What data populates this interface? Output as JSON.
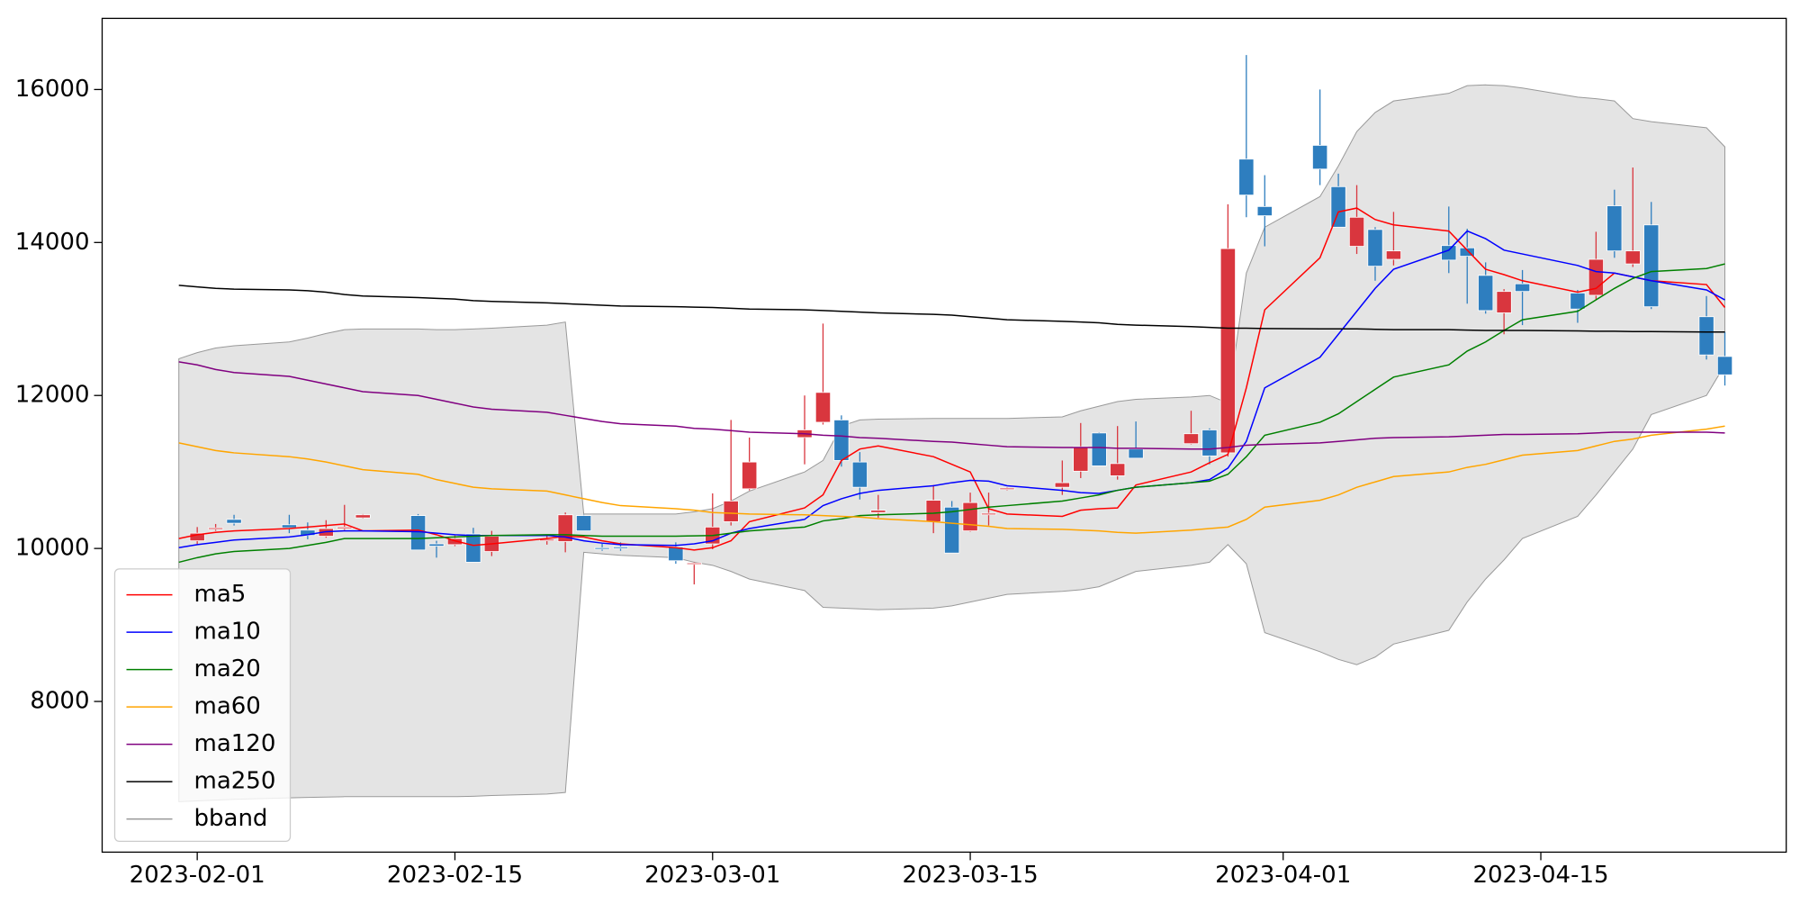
{
  "chart_data": {
    "type": "candlestick",
    "x": [
      "2023-01-31",
      "2023-02-01",
      "2023-02-02",
      "2023-02-03",
      "2023-02-06",
      "2023-02-07",
      "2023-02-08",
      "2023-02-09",
      "2023-02-10",
      "2023-02-13",
      "2023-02-14",
      "2023-02-15",
      "2023-02-16",
      "2023-02-17",
      "2023-02-20",
      "2023-02-21",
      "2023-02-22",
      "2023-02-23",
      "2023-02-24",
      "2023-02-27",
      "2023-02-28",
      "2023-03-01",
      "2023-03-02",
      "2023-03-03",
      "2023-03-06",
      "2023-03-07",
      "2023-03-08",
      "2023-03-09",
      "2023-03-10",
      "2023-03-13",
      "2023-03-14",
      "2023-03-15",
      "2023-03-16",
      "2023-03-17",
      "2023-03-20",
      "2023-03-21",
      "2023-03-22",
      "2023-03-23",
      "2023-03-24",
      "2023-03-27",
      "2023-03-28",
      "2023-03-29",
      "2023-03-30",
      "2023-03-31",
      "2023-04-03",
      "2023-04-04",
      "2023-04-05",
      "2023-04-06",
      "2023-04-07",
      "2023-04-10",
      "2023-04-11",
      "2023-04-12",
      "2023-04-13",
      "2023-04-14",
      "2023-04-17",
      "2023-04-18",
      "2023-04-19",
      "2023-04-20",
      "2023-04-21",
      "2023-04-24",
      "2023-04-25"
    ],
    "open": [
      null,
      10100,
      10250,
      10380,
      10310,
      10240,
      10160,
      10260,
      10400,
      10430,
      10060,
      10050,
      10190,
      9960,
      10100,
      10090,
      10430,
      10010,
      10020,
      10020,
      9800,
      10060,
      10350,
      10780,
      11450,
      11650,
      11680,
      11130,
      10470,
      10350,
      10540,
      10230,
      10440,
      10770,
      10800,
      11010,
      11510,
      10950,
      11300,
      11370,
      11550,
      11250,
      15090,
      14470,
      15270,
      14730,
      13950,
      14170,
      13780,
      13960,
      13930,
      13570,
      13080,
      13460,
      13340,
      13310,
      14480,
      13720,
      14230,
      13030,
      12510
    ],
    "high": [
      null,
      10280,
      10320,
      10440,
      10440,
      10340,
      10370,
      10570,
      10450,
      10450,
      10100,
      10170,
      10270,
      10230,
      10180,
      10470,
      10440,
      10060,
      10080,
      10080,
      9820,
      10720,
      11680,
      11450,
      12000,
      12940,
      11740,
      11260,
      10700,
      10830,
      10620,
      10730,
      10730,
      10800,
      11150,
      11640,
      11520,
      11600,
      11660,
      11800,
      11570,
      14500,
      16450,
      14880,
      16000,
      14900,
      14750,
      14200,
      14400,
      14470,
      14180,
      13740,
      13390,
      13640,
      13380,
      14140,
      14690,
      14980,
      14530,
      13300,
      12830
    ],
    "low": [
      null,
      10050,
      10230,
      10300,
      10200,
      10120,
      10140,
      10240,
      10390,
      9980,
      9880,
      10030,
      9820,
      9900,
      10050,
      9950,
      10230,
      9970,
      9970,
      9800,
      9530,
      9990,
      10300,
      10760,
      11100,
      11620,
      11070,
      10640,
      10400,
      10200,
      9940,
      10220,
      10300,
      10760,
      10700,
      10920,
      11080,
      10900,
      11180,
      11360,
      11100,
      11200,
      14330,
      13950,
      14750,
      14200,
      13850,
      13500,
      13700,
      13600,
      13200,
      13070,
      12800,
      12920,
      12950,
      13250,
      13800,
      13680,
      13130,
      12470,
      12130
    ],
    "close": [
      null,
      10200,
      10270,
      10330,
      10270,
      10170,
      10260,
      10280,
      10440,
      9980,
      10030,
      10130,
      9820,
      10160,
      10120,
      10440,
      10230,
      9990,
      10000,
      9840,
      9810,
      10280,
      10620,
      11130,
      11550,
      12040,
      11150,
      10800,
      10500,
      10630,
      9940,
      10600,
      10460,
      10790,
      10860,
      11330,
      11080,
      11110,
      11180,
      11500,
      11210,
      13920,
      14620,
      14350,
      14960,
      14200,
      14330,
      13690,
      13890,
      13770,
      13820,
      13110,
      13360,
      13360,
      13130,
      13780,
      13890,
      13890,
      13160,
      12530,
      12270
    ],
    "up_color": "#d9363e",
    "down_color": "#2e7ebf",
    "series": [
      {
        "name": "ma5",
        "color": "#ff0000",
        "values": [
          10130,
          10180,
          10210,
          10230,
          10260,
          10280,
          10300,
          10320,
          10230,
          10240,
          10180,
          10100,
          10040,
          10060,
          10130,
          10160,
          10150,
          10100,
          10060,
          10010,
          9980,
          10010,
          10100,
          10350,
          10530,
          10700,
          11150,
          11300,
          11340,
          11200,
          11100,
          11000,
          10520,
          10450,
          10420,
          10500,
          10520,
          10530,
          10830,
          11000,
          11120,
          11230,
          12100,
          13120,
          13800,
          14400,
          14450,
          14300,
          14230,
          14150,
          13900,
          13650,
          13580,
          13500,
          13350,
          13400,
          13600,
          13550,
          13500,
          13450,
          13150
        ]
      },
      {
        "name": "ma10",
        "color": "#0000ff",
        "values": [
          10010,
          10050,
          10080,
          10110,
          10150,
          10180,
          10220,
          10230,
          10230,
          10220,
          10200,
          10180,
          10170,
          10170,
          10170,
          10150,
          10100,
          10070,
          10050,
          10040,
          10060,
          10100,
          10200,
          10260,
          10380,
          10560,
          10650,
          10720,
          10760,
          10820,
          10860,
          10890,
          10880,
          10820,
          10760,
          10730,
          10720,
          10760,
          10800,
          10860,
          10900,
          11050,
          11400,
          12100,
          12500,
          12800,
          13100,
          13400,
          13650,
          13900,
          14150,
          14050,
          13900,
          13850,
          13700,
          13620,
          13600,
          13550,
          13500,
          13380,
          13250
        ]
      },
      {
        "name": "ma20",
        "color": "#008000",
        "values": [
          9820,
          9880,
          9930,
          9960,
          10000,
          10040,
          10080,
          10130,
          10130,
          10130,
          10140,
          10150,
          10160,
          10170,
          10180,
          10180,
          10170,
          10160,
          10160,
          10160,
          10165,
          10170,
          10200,
          10230,
          10280,
          10360,
          10390,
          10430,
          10440,
          10460,
          10480,
          10510,
          10540,
          10560,
          10620,
          10660,
          10700,
          10760,
          10800,
          10860,
          10880,
          10970,
          11200,
          11480,
          11650,
          11760,
          11920,
          12080,
          12240,
          12400,
          12580,
          12700,
          12850,
          12990,
          13100,
          13250,
          13400,
          13530,
          13620,
          13660,
          13720
        ]
      },
      {
        "name": "ma60",
        "color": "#ffa500",
        "values": [
          11380,
          11330,
          11280,
          11250,
          11200,
          11170,
          11130,
          11080,
          11030,
          10970,
          10900,
          10850,
          10800,
          10780,
          10750,
          10700,
          10650,
          10600,
          10560,
          10520,
          10500,
          10470,
          10460,
          10450,
          10440,
          10430,
          10420,
          10410,
          10390,
          10350,
          10330,
          10310,
          10290,
          10260,
          10250,
          10240,
          10230,
          10210,
          10200,
          10240,
          10260,
          10280,
          10380,
          10540,
          10630,
          10700,
          10800,
          10870,
          10940,
          11000,
          11060,
          11100,
          11160,
          11220,
          11280,
          11340,
          11400,
          11430,
          11480,
          11560,
          11600
        ]
      },
      {
        "name": "ma120",
        "color": "#800080",
        "values": [
          12440,
          12400,
          12340,
          12300,
          12250,
          12200,
          12150,
          12100,
          12050,
          12000,
          11950,
          11900,
          11850,
          11820,
          11780,
          11740,
          11700,
          11660,
          11630,
          11600,
          11570,
          11560,
          11540,
          11520,
          11500,
          11480,
          11470,
          11450,
          11440,
          11400,
          11390,
          11370,
          11350,
          11330,
          11320,
          11320,
          11320,
          11310,
          11310,
          11300,
          11300,
          11320,
          11350,
          11360,
          11380,
          11400,
          11420,
          11440,
          11450,
          11460,
          11470,
          11480,
          11490,
          11490,
          11500,
          11510,
          11520,
          11520,
          11520,
          11520,
          11510
        ]
      },
      {
        "name": "ma250",
        "color": "#000000",
        "values": [
          13440,
          13420,
          13400,
          13390,
          13380,
          13370,
          13350,
          13320,
          13300,
          13280,
          13270,
          13260,
          13240,
          13230,
          13210,
          13200,
          13190,
          13180,
          13170,
          13160,
          13155,
          13150,
          13140,
          13130,
          13120,
          13110,
          13100,
          13090,
          13080,
          13060,
          13050,
          13030,
          13010,
          12990,
          12970,
          12960,
          12950,
          12930,
          12920,
          12900,
          12890,
          12880,
          12880,
          12875,
          12870,
          12870,
          12870,
          12865,
          12860,
          12860,
          12855,
          12850,
          12850,
          12850,
          12845,
          12840,
          12840,
          12835,
          12835,
          12830,
          12830
        ]
      }
    ],
    "band": {
      "name": "bband",
      "color": "#e4e4e4",
      "edge_color": "#999999",
      "upper": [
        12480,
        12560,
        12620,
        12650,
        12700,
        12750,
        12810,
        12860,
        12870,
        12870,
        12860,
        12860,
        12870,
        12880,
        12920,
        12960,
        10450,
        10450,
        10450,
        10450,
        10480,
        10520,
        10620,
        10750,
        11000,
        11150,
        11600,
        11680,
        11690,
        11700,
        11700,
        11700,
        11700,
        11700,
        11720,
        11800,
        11860,
        11920,
        11950,
        11980,
        12000,
        11900,
        13600,
        14200,
        14600,
        15000,
        15450,
        15700,
        15850,
        15950,
        16050,
        16060,
        16050,
        16020,
        15900,
        15880,
        15850,
        15620,
        15580,
        15500,
        15250
      ],
      "lower": [
        6690,
        6700,
        6710,
        6720,
        6740,
        6745,
        6750,
        6755,
        6755,
        6755,
        6755,
        6755,
        6760,
        6770,
        6790,
        6810,
        9950,
        9930,
        9910,
        9880,
        9820,
        9780,
        9700,
        9600,
        9450,
        9230,
        9220,
        9210,
        9200,
        9220,
        9250,
        9300,
        9350,
        9400,
        9440,
        9460,
        9500,
        9600,
        9700,
        9780,
        9820,
        10050,
        9800,
        8900,
        8650,
        8550,
        8480,
        8580,
        8750,
        8930,
        9300,
        9600,
        9850,
        10130,
        10420,
        10700,
        11000,
        11300,
        11750,
        12000,
        12400
      ]
    },
    "xlim": [
      "2023-01-26T20:00",
      "2023-04-28T08:00"
    ],
    "xticks": [
      "2023-02-01",
      "2023-02-15",
      "2023-03-01",
      "2023-03-15",
      "2023-04-01",
      "2023-04-15"
    ],
    "ylim": [
      6030,
      16930
    ],
    "yticks": [
      8000,
      10000,
      12000,
      14000,
      16000
    ],
    "legend": "lower left"
  }
}
